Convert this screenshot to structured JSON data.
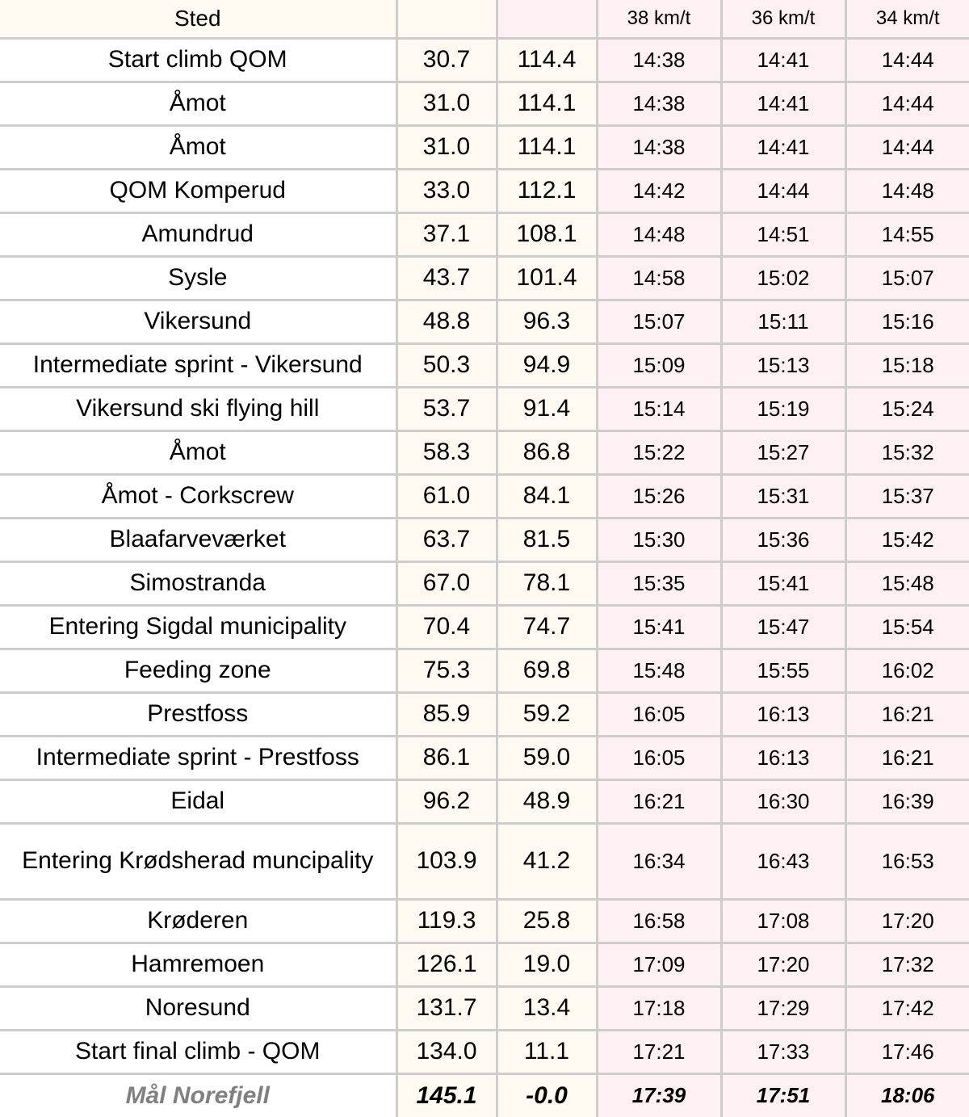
{
  "header": {
    "place": "Sted",
    "col1": "",
    "col2": "",
    "speeds": [
      "38 km/t",
      "36 km/t",
      "34 km/t"
    ]
  },
  "rows": [
    {
      "place": "Start climb QOM",
      "km": "30.7",
      "rem": "114.4",
      "t38": "14:38",
      "t36": "14:41",
      "t34": "14:44"
    },
    {
      "place": "Åmot",
      "km": "31.0",
      "rem": "114.1",
      "t38": "14:38",
      "t36": "14:41",
      "t34": "14:44"
    },
    {
      "place": "Åmot",
      "km": "31.0",
      "rem": "114.1",
      "t38": "14:38",
      "t36": "14:41",
      "t34": "14:44"
    },
    {
      "place": "QOM Komperud",
      "km": "33.0",
      "rem": "112.1",
      "t38": "14:42",
      "t36": "14:44",
      "t34": "14:48"
    },
    {
      "place": "Amundrud",
      "km": "37.1",
      "rem": "108.1",
      "t38": "14:48",
      "t36": "14:51",
      "t34": "14:55"
    },
    {
      "place": "Sysle",
      "km": "43.7",
      "rem": "101.4",
      "t38": "14:58",
      "t36": "15:02",
      "t34": "15:07"
    },
    {
      "place": "Vikersund",
      "km": "48.8",
      "rem": "96.3",
      "t38": "15:07",
      "t36": "15:11",
      "t34": "15:16"
    },
    {
      "place": "Intermediate sprint - Vikersund",
      "km": "50.3",
      "rem": "94.9",
      "t38": "15:09",
      "t36": "15:13",
      "t34": "15:18"
    },
    {
      "place": "Vikersund ski flying hill",
      "km": "53.7",
      "rem": "91.4",
      "t38": "15:14",
      "t36": "15:19",
      "t34": "15:24"
    },
    {
      "place": "Åmot",
      "km": "58.3",
      "rem": "86.8",
      "t38": "15:22",
      "t36": "15:27",
      "t34": "15:32"
    },
    {
      "place": "Åmot - Corkscrew",
      "km": "61.0",
      "rem": "84.1",
      "t38": "15:26",
      "t36": "15:31",
      "t34": "15:37"
    },
    {
      "place": "Blaafarveværket",
      "km": "63.7",
      "rem": "81.5",
      "t38": "15:30",
      "t36": "15:36",
      "t34": "15:42"
    },
    {
      "place": "Simostranda",
      "km": "67.0",
      "rem": "78.1",
      "t38": "15:35",
      "t36": "15:41",
      "t34": "15:48"
    },
    {
      "place": "Entering Sigdal municipality",
      "km": "70.4",
      "rem": "74.7",
      "t38": "15:41",
      "t36": "15:47",
      "t34": "15:54"
    },
    {
      "place": "Feeding zone",
      "km": "75.3",
      "rem": "69.8",
      "t38": "15:48",
      "t36": "15:55",
      "t34": "16:02"
    },
    {
      "place": "Prestfoss",
      "km": "85.9",
      "rem": "59.2",
      "t38": "16:05",
      "t36": "16:13",
      "t34": "16:21"
    },
    {
      "place": "Intermediate sprint - Prestfoss",
      "km": "86.1",
      "rem": "59.0",
      "t38": "16:05",
      "t36": "16:13",
      "t34": "16:21"
    },
    {
      "place": "Eidal",
      "km": "96.2",
      "rem": "48.9",
      "t38": "16:21",
      "t36": "16:30",
      "t34": "16:39"
    },
    {
      "place": "Entering Krødsherad muncipality",
      "km": "103.9",
      "rem": "41.2",
      "t38": "16:34",
      "t36": "16:43",
      "t34": "16:53"
    },
    {
      "place": "Krøderen",
      "km": "119.3",
      "rem": "25.8",
      "t38": "16:58",
      "t36": "17:08",
      "t34": "17:20"
    },
    {
      "place": "Hamremoen",
      "km": "126.1",
      "rem": "19.0",
      "t38": "17:09",
      "t36": "17:20",
      "t34": "17:32"
    },
    {
      "place": "Noresund",
      "km": "131.7",
      "rem": "13.4",
      "t38": "17:18",
      "t36": "17:29",
      "t34": "17:42"
    },
    {
      "place": "Start final climb - QOM",
      "km": "134.0",
      "rem": "11.1",
      "t38": "17:21",
      "t36": "17:33",
      "t34": "17:46"
    },
    {
      "place": "Mål Norefjell",
      "km": "145.1",
      "rem": "-0.0",
      "t38": "17:39",
      "t36": "17:51",
      "t34": "18:06"
    }
  ]
}
